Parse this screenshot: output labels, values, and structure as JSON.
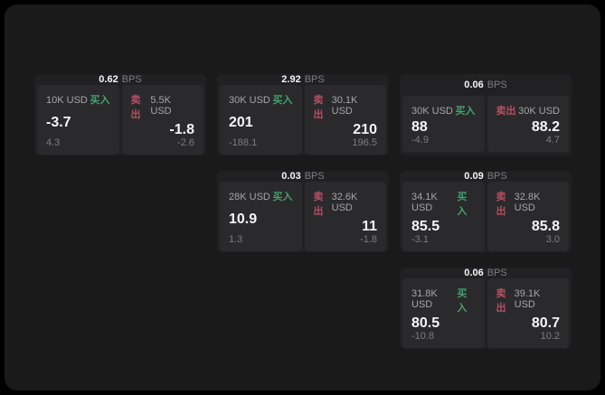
{
  "colors": {
    "page_bg": "#000000",
    "app_bg": "#1a1a1b",
    "card_bg": "#212123",
    "panel_bg": "#2a2a2c",
    "text_primary": "#f5f5f5",
    "text_secondary": "#a6a6a6",
    "text_muted": "#7d7d7d",
    "buy_green": "#45a06d",
    "sell_red": "#b64e63"
  },
  "labels": {
    "bps_suffix": "BPS",
    "buy": "买入",
    "sell": "卖出"
  },
  "cards": [
    {
      "row": 1,
      "col": 1,
      "bps": "0.62",
      "buy": {
        "size": "10K USD",
        "price": "-3.7",
        "delta": "4.3"
      },
      "sell": {
        "size": "5.5K USD",
        "price": "-1.8",
        "delta": "-2.6"
      }
    },
    {
      "row": 1,
      "col": 2,
      "bps": "2.92",
      "buy": {
        "size": "30K USD",
        "price": "201",
        "delta": "-188.1"
      },
      "sell": {
        "size": "30.1K USD",
        "price": "210",
        "delta": "196.5"
      }
    },
    {
      "row": 1,
      "col": 3,
      "bps": "0.06",
      "buy": {
        "size": "30K USD",
        "price": "88",
        "delta": "-4.9"
      },
      "sell": {
        "size": "30K USD",
        "price": "88.2",
        "delta": "4.7"
      }
    },
    {
      "row": 2,
      "col": 2,
      "bps": "0.03",
      "buy": {
        "size": "28K USD",
        "price": "10.9",
        "delta": "1.3"
      },
      "sell": {
        "size": "32.6K USD",
        "price": "11",
        "delta": "-1.8"
      }
    },
    {
      "row": 2,
      "col": 3,
      "bps": "0.09",
      "buy": {
        "size": "34.1K USD",
        "price": "85.5",
        "delta": "-3.1"
      },
      "sell": {
        "size": "32.8K USD",
        "price": "85.8",
        "delta": "3.0"
      }
    },
    {
      "row": 3,
      "col": 3,
      "bps": "0.06",
      "buy": {
        "size": "31.8K USD",
        "price": "80.5",
        "delta": "-10.8"
      },
      "sell": {
        "size": "39.1K USD",
        "price": "80.7",
        "delta": "10.2"
      }
    }
  ]
}
